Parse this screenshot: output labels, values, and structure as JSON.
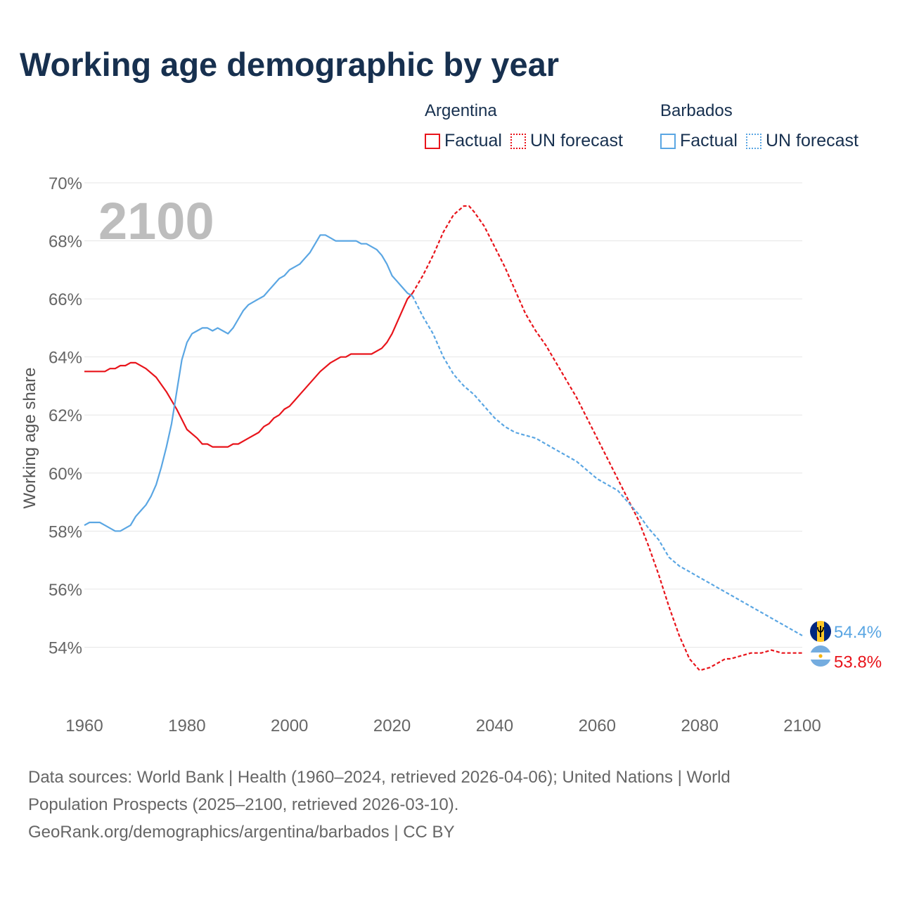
{
  "title": "Working age demographic by year",
  "year_label": "2100",
  "legend": {
    "groups": [
      {
        "country": "Argentina",
        "color": "#e8141b",
        "factual_label": "Factual",
        "forecast_label": "UN forecast"
      },
      {
        "country": "Barbados",
        "color": "#5aa6e3",
        "factual_label": "Factual",
        "forecast_label": "UN forecast"
      }
    ]
  },
  "end_labels": {
    "argentina": "53.8%",
    "barbados": "54.4%"
  },
  "sources": {
    "line1": "Data sources: World Bank | Health (1960–2024, retrieved 2026-04-06); United Nations | World",
    "line2": "Population Prospects (2025–2100, retrieved 2026-03-10).",
    "line3": "GeoRank.org/demographics/argentina/barbados | CC BY"
  },
  "icons": {
    "argentina_flag": "argentina-flag-icon",
    "barbados_flag": "barbados-flag-icon"
  },
  "chart_data": {
    "type": "line",
    "title": "Working age demographic by year",
    "xlabel": "",
    "ylabel": "Working age share",
    "xlim": [
      1960,
      2100
    ],
    "ylim": [
      52,
      70
    ],
    "x_ticks": [
      1960,
      1980,
      2000,
      2020,
      2040,
      2060,
      2080,
      2100
    ],
    "y_ticks": [
      54,
      56,
      58,
      60,
      62,
      64,
      66,
      68,
      70
    ],
    "x_tick_labels": [
      "1960",
      "1980",
      "2000",
      "2020",
      "2040",
      "2060",
      "2080",
      "2100"
    ],
    "y_tick_labels": [
      "54%",
      "56%",
      "58%",
      "60%",
      "62%",
      "64%",
      "66%",
      "68%",
      "70%"
    ],
    "grid": true,
    "series": [
      {
        "name": "Argentina",
        "segment": "Factual",
        "color": "#e8141b",
        "dashed": false,
        "x": [
          1960,
          1962,
          1964,
          1965,
          1966,
          1967,
          1968,
          1969,
          1970,
          1972,
          1974,
          1976,
          1978,
          1980,
          1982,
          1983,
          1984,
          1985,
          1986,
          1988,
          1989,
          1990,
          1992,
          1994,
          1995,
          1996,
          1997,
          1998,
          1999,
          2000,
          2001,
          2002,
          2004,
          2006,
          2008,
          2010,
          2011,
          2012,
          2013,
          2014,
          2016,
          2018,
          2019,
          2020,
          2021,
          2022,
          2023,
          2024
        ],
        "y": [
          63.5,
          63.5,
          63.5,
          63.6,
          63.6,
          63.7,
          63.7,
          63.8,
          63.8,
          63.6,
          63.3,
          62.8,
          62.2,
          61.5,
          61.2,
          61.0,
          61.0,
          60.9,
          60.9,
          60.9,
          61.0,
          61.0,
          61.2,
          61.4,
          61.6,
          61.7,
          61.9,
          62.0,
          62.2,
          62.3,
          62.5,
          62.7,
          63.1,
          63.5,
          63.8,
          64.0,
          64.0,
          64.1,
          64.1,
          64.1,
          64.1,
          64.3,
          64.5,
          64.8,
          65.2,
          65.6,
          66.0,
          66.2
        ]
      },
      {
        "name": "Argentina",
        "segment": "UN forecast",
        "color": "#e8141b",
        "dashed": true,
        "x": [
          2024,
          2026,
          2028,
          2030,
          2032,
          2034,
          2035,
          2036,
          2038,
          2040,
          2042,
          2044,
          2046,
          2048,
          2050,
          2052,
          2054,
          2056,
          2058,
          2060,
          2062,
          2064,
          2066,
          2068,
          2070,
          2072,
          2074,
          2076,
          2078,
          2080,
          2082,
          2084,
          2085,
          2086,
          2088,
          2090,
          2092,
          2094,
          2096,
          2098,
          2100
        ],
        "y": [
          66.2,
          66.8,
          67.5,
          68.3,
          68.9,
          69.2,
          69.2,
          69.0,
          68.5,
          67.8,
          67.1,
          66.3,
          65.5,
          64.9,
          64.4,
          63.8,
          63.2,
          62.6,
          61.9,
          61.2,
          60.5,
          59.8,
          59.1,
          58.4,
          57.5,
          56.5,
          55.4,
          54.4,
          53.6,
          53.2,
          53.3,
          53.5,
          53.6,
          53.6,
          53.7,
          53.8,
          53.8,
          53.9,
          53.8,
          53.8,
          53.8
        ]
      },
      {
        "name": "Barbados",
        "segment": "Factual",
        "color": "#5aa6e3",
        "dashed": false,
        "x": [
          1960,
          1961,
          1962,
          1963,
          1964,
          1965,
          1966,
          1967,
          1968,
          1969,
          1970,
          1971,
          1972,
          1973,
          1974,
          1975,
          1976,
          1977,
          1978,
          1979,
          1980,
          1981,
          1982,
          1983,
          1984,
          1985,
          1986,
          1987,
          1988,
          1989,
          1990,
          1991,
          1992,
          1993,
          1994,
          1995,
          1996,
          1997,
          1998,
          1999,
          2000,
          2001,
          2002,
          2003,
          2004,
          2005,
          2006,
          2007,
          2008,
          2009,
          2010,
          2011,
          2012,
          2013,
          2014,
          2015,
          2016,
          2017,
          2018,
          2019,
          2020,
          2021,
          2022,
          2023,
          2024
        ],
        "y": [
          58.2,
          58.3,
          58.3,
          58.3,
          58.2,
          58.1,
          58.0,
          58.0,
          58.1,
          58.2,
          58.5,
          58.7,
          58.9,
          59.2,
          59.6,
          60.2,
          60.9,
          61.7,
          62.8,
          63.9,
          64.5,
          64.8,
          64.9,
          65.0,
          65.0,
          64.9,
          65.0,
          64.9,
          64.8,
          65.0,
          65.3,
          65.6,
          65.8,
          65.9,
          66.0,
          66.1,
          66.3,
          66.5,
          66.7,
          66.8,
          67.0,
          67.1,
          67.2,
          67.4,
          67.6,
          67.9,
          68.2,
          68.2,
          68.1,
          68.0,
          68.0,
          68.0,
          68.0,
          68.0,
          67.9,
          67.9,
          67.8,
          67.7,
          67.5,
          67.2,
          66.8,
          66.6,
          66.4,
          66.2,
          66.1
        ]
      },
      {
        "name": "Barbados",
        "segment": "UN forecast",
        "color": "#5aa6e3",
        "dashed": true,
        "x": [
          2024,
          2026,
          2028,
          2030,
          2032,
          2034,
          2036,
          2038,
          2040,
          2042,
          2044,
          2046,
          2048,
          2050,
          2052,
          2054,
          2056,
          2058,
          2060,
          2062,
          2064,
          2066,
          2068,
          2070,
          2072,
          2074,
          2076,
          2078,
          2080,
          2082,
          2084,
          2086,
          2088,
          2090,
          2092,
          2094,
          2096,
          2098,
          2100
        ],
        "y": [
          66.1,
          65.4,
          64.8,
          64.0,
          63.4,
          63.0,
          62.7,
          62.3,
          61.9,
          61.6,
          61.4,
          61.3,
          61.2,
          61.0,
          60.8,
          60.6,
          60.4,
          60.1,
          59.8,
          59.6,
          59.4,
          59.0,
          58.6,
          58.1,
          57.7,
          57.1,
          56.8,
          56.6,
          56.4,
          56.2,
          56.0,
          55.8,
          55.6,
          55.4,
          55.2,
          55.0,
          54.8,
          54.6,
          54.4
        ]
      }
    ]
  }
}
